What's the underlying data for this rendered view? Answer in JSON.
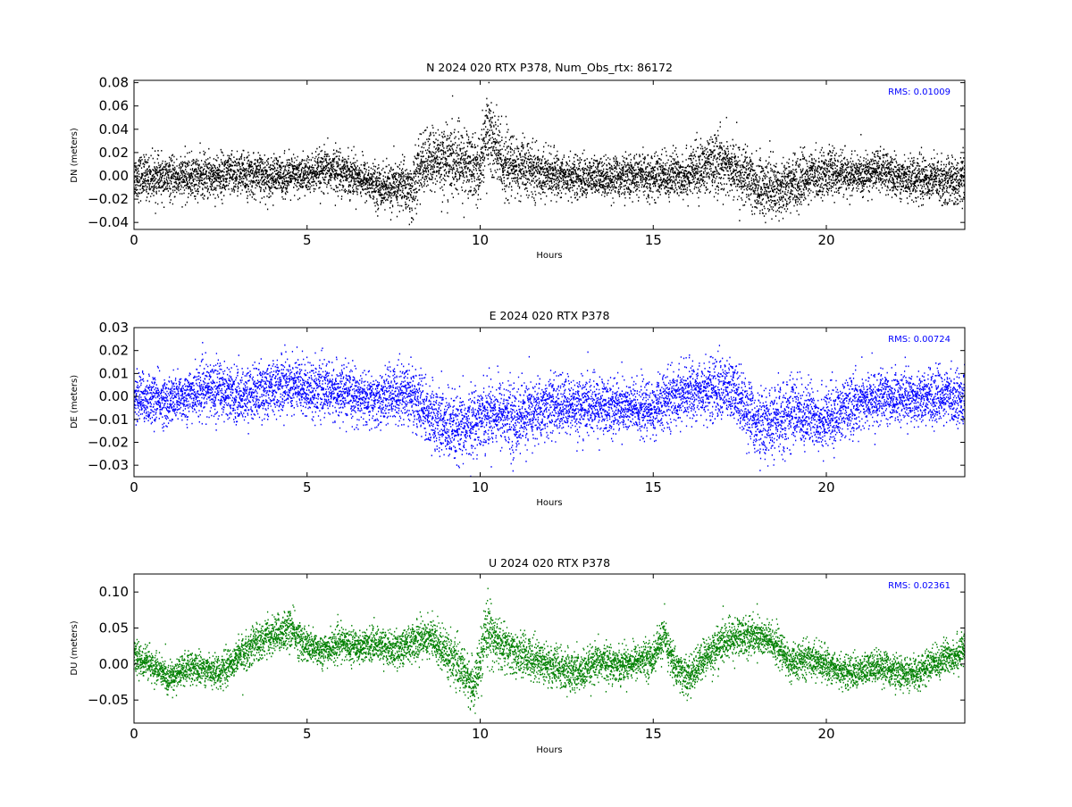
{
  "chart_data": [
    {
      "type": "scatter",
      "title": "N 2024 020 RTX  P378, Num_Obs_rtx: 86172",
      "xlabel": "Hours",
      "ylabel": "DN (meters)",
      "xlim": [
        0,
        24
      ],
      "ylim": [
        -0.046,
        0.082
      ],
      "xticks": [
        0,
        5,
        10,
        15,
        20
      ],
      "xtick_labels": [
        "0",
        "5",
        "10",
        "15",
        "20"
      ],
      "yticks": [
        -0.04,
        -0.02,
        0.0,
        0.02,
        0.04,
        0.06,
        0.08
      ],
      "ytick_labels": [
        "−0.04",
        "−0.02",
        "0.00",
        "0.02",
        "0.04",
        "0.06",
        "0.08"
      ],
      "annotation": "RMS:  0.01009",
      "annotation_color": "#0000ff",
      "grid": false,
      "color": "#000000",
      "series": [
        {
          "center_x": [
            0,
            1,
            2,
            3,
            4,
            5,
            5.8,
            6.5,
            7,
            7.5,
            7.8,
            8.0,
            8.3,
            8.8,
            9.3,
            9.8,
            10.0,
            10.2,
            10.4,
            10.7,
            11.0,
            12,
            13,
            14,
            15,
            16,
            16.5,
            17,
            17.5,
            18,
            18.5,
            19,
            20,
            21,
            21.5,
            22,
            23,
            24
          ],
          "center_y": [
            0.0,
            -0.002,
            0.0,
            0.002,
            0.0,
            0.001,
            0.006,
            0.0,
            -0.008,
            -0.01,
            -0.005,
            -0.015,
            0.01,
            0.015,
            0.012,
            0.01,
            0.005,
            0.045,
            0.025,
            0.01,
            0.008,
            0.002,
            -0.001,
            0.0,
            0.0,
            0.002,
            0.008,
            0.012,
            0.002,
            -0.008,
            -0.01,
            -0.006,
            0.004,
            0.0,
            0.006,
            0.0,
            -0.002,
            -0.004
          ],
          "spread_y": [
            0.022,
            0.02,
            0.022,
            0.022,
            0.02,
            0.02,
            0.022,
            0.02,
            0.02,
            0.024,
            0.026,
            0.03,
            0.03,
            0.034,
            0.036,
            0.034,
            0.03,
            0.05,
            0.045,
            0.034,
            0.03,
            0.022,
            0.02,
            0.02,
            0.022,
            0.024,
            0.028,
            0.03,
            0.028,
            0.03,
            0.03,
            0.026,
            0.022,
            0.02,
            0.02,
            0.02,
            0.022,
            0.024
          ]
        }
      ]
    },
    {
      "type": "scatter",
      "title": "E 2024 020 RTX  P378",
      "xlabel": "Hours",
      "ylabel": "DE (meters)",
      "xlim": [
        0,
        24
      ],
      "ylim": [
        -0.035,
        0.03
      ],
      "xticks": [
        0,
        5,
        10,
        15,
        20
      ],
      "xtick_labels": [
        "0",
        "5",
        "10",
        "15",
        "20"
      ],
      "yticks": [
        -0.03,
        -0.02,
        -0.01,
        0.0,
        0.01,
        0.02,
        0.03
      ],
      "ytick_labels": [
        "−0.03",
        "−0.02",
        "−0.01",
        "0.00",
        "0.01",
        "0.02",
        "0.03"
      ],
      "annotation": "RMS:  0.00724",
      "annotation_color": "#0000ff",
      "grid": false,
      "color": "#0000ff",
      "series": [
        {
          "center_x": [
            0,
            1,
            2,
            2.5,
            3,
            4,
            4.5,
            5,
            6,
            7,
            7.5,
            8,
            8.5,
            9,
            9.3,
            10,
            10.5,
            11,
            12,
            13,
            14,
            15,
            15.5,
            16,
            17,
            17.5,
            18,
            18.5,
            19,
            19.5,
            20,
            21,
            22,
            23,
            24
          ],
          "center_y": [
            0.0,
            -0.002,
            0.003,
            0.004,
            0.0,
            0.004,
            0.006,
            0.004,
            0.002,
            -0.002,
            0.002,
            0.002,
            -0.008,
            -0.012,
            -0.016,
            -0.008,
            -0.006,
            -0.01,
            -0.004,
            -0.004,
            -0.004,
            -0.006,
            0.0,
            0.002,
            0.004,
            0.0,
            -0.012,
            -0.012,
            -0.006,
            -0.008,
            -0.01,
            -0.002,
            0.0,
            0.0,
            0.0
          ],
          "spread_y": [
            0.013,
            0.012,
            0.013,
            0.015,
            0.013,
            0.014,
            0.015,
            0.014,
            0.013,
            0.013,
            0.014,
            0.017,
            0.016,
            0.018,
            0.018,
            0.016,
            0.017,
            0.018,
            0.015,
            0.015,
            0.014,
            0.014,
            0.014,
            0.014,
            0.016,
            0.016,
            0.016,
            0.018,
            0.018,
            0.016,
            0.016,
            0.014,
            0.013,
            0.013,
            0.013
          ]
        }
      ]
    },
    {
      "type": "scatter",
      "title": "U 2024 020 RTX  P378",
      "xlabel": "Hours",
      "ylabel": "DU (meters)",
      "xlim": [
        0,
        24
      ],
      "ylim": [
        -0.082,
        0.125
      ],
      "xticks": [
        0,
        5,
        10,
        15,
        20
      ],
      "xtick_labels": [
        "0",
        "5",
        "10",
        "15",
        "20"
      ],
      "yticks": [
        -0.05,
        0.0,
        0.05,
        0.1
      ],
      "ytick_labels": [
        "−0.05",
        "0.00",
        "0.05",
        "0.10"
      ],
      "annotation": "RMS:  0.02361",
      "annotation_color": "#0000ff",
      "grid": false,
      "color": "#008000",
      "series": [
        {
          "center_x": [
            0,
            0.5,
            1,
            1.5,
            2,
            2.5,
            3,
            3.5,
            4,
            4.5,
            5,
            5.5,
            6,
            6.5,
            7,
            7.5,
            8,
            8.5,
            9,
            9.5,
            9.8,
            10.0,
            10.2,
            10.5,
            11,
            11.5,
            12,
            12.5,
            13,
            13.5,
            14,
            14.5,
            15,
            15.3,
            15.6,
            16,
            16.5,
            17,
            17.5,
            18,
            18.5,
            19,
            19.5,
            20,
            20.5,
            21,
            21.5,
            22,
            22.5,
            23,
            23.5,
            24
          ],
          "center_y": [
            0.01,
            0.0,
            -0.02,
            -0.005,
            -0.005,
            -0.01,
            0.01,
            0.03,
            0.04,
            0.05,
            0.025,
            0.02,
            0.03,
            0.025,
            0.03,
            0.02,
            0.03,
            0.04,
            0.02,
            -0.01,
            -0.03,
            0.0,
            0.05,
            0.03,
            0.015,
            0.01,
            0.0,
            -0.01,
            -0.01,
            0.005,
            0.0,
            0.005,
            0.01,
            0.04,
            0.0,
            -0.02,
            0.01,
            0.03,
            0.04,
            0.04,
            0.03,
            0.0,
            0.01,
            0.0,
            -0.01,
            -0.01,
            0.0,
            -0.01,
            -0.015,
            0.0,
            0.01,
            0.02
          ],
          "spread_y": [
            0.025,
            0.025,
            0.025,
            0.025,
            0.025,
            0.025,
            0.028,
            0.03,
            0.03,
            0.032,
            0.028,
            0.026,
            0.026,
            0.026,
            0.026,
            0.028,
            0.03,
            0.034,
            0.036,
            0.036,
            0.038,
            0.04,
            0.05,
            0.04,
            0.034,
            0.034,
            0.034,
            0.034,
            0.032,
            0.03,
            0.028,
            0.028,
            0.028,
            0.032,
            0.032,
            0.03,
            0.032,
            0.032,
            0.032,
            0.032,
            0.03,
            0.028,
            0.028,
            0.026,
            0.026,
            0.026,
            0.026,
            0.026,
            0.026,
            0.026,
            0.028,
            0.03
          ]
        }
      ]
    }
  ]
}
